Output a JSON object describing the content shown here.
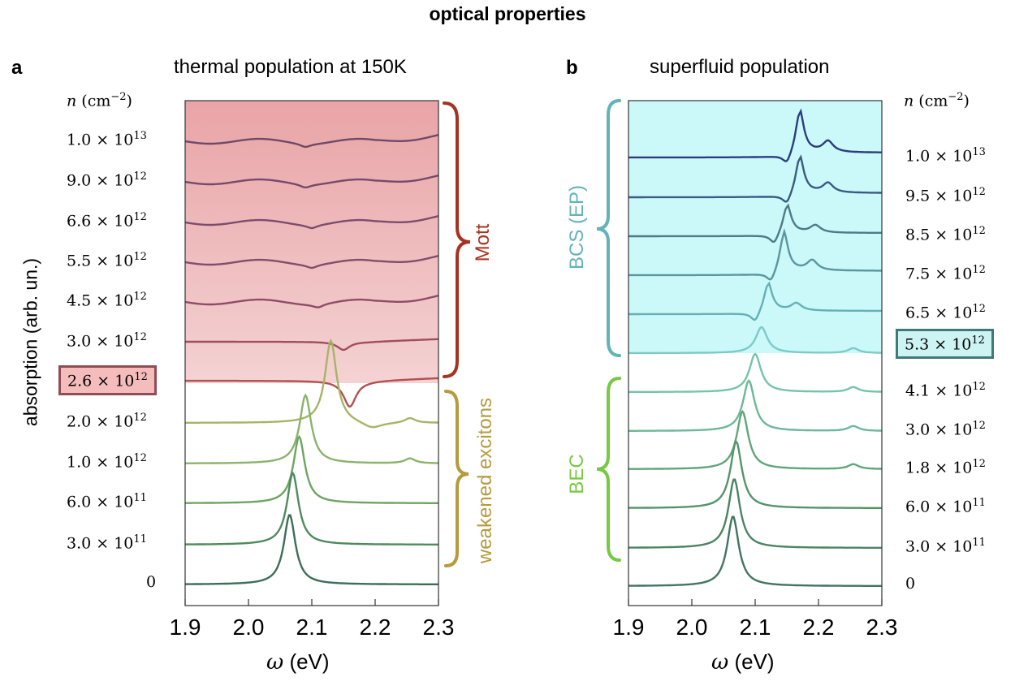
{
  "title": "optical properties",
  "y_axis_label": "absorption (arb. un.)",
  "colors": {
    "mott_brace": "#a83220",
    "weakened_brace": "#b59a3e",
    "bcs_brace": "#63b3b7",
    "bec_brace": "#77c843",
    "highlight_a_fill": "#f5bcbc",
    "highlight_a_border": "#8f4d55",
    "highlight_b_fill": "#cdf3f3",
    "highlight_b_border": "#3d7a78",
    "bg_a_top": "#e9a4a6",
    "bg_a_bottom": "#f4d2d3",
    "bg_b": "#cbf8f9"
  },
  "chart_data": [
    {
      "panel": "a",
      "type": "line",
      "title": "thermal population at 150K",
      "xlabel": "ω (eV)",
      "xlim": [
        1.9,
        2.3
      ],
      "xticks": [
        "1.9",
        "2.0",
        "2.1",
        "2.2",
        "2.3"
      ],
      "density_header": "n (cm−2)",
      "highlight": "2.6 × 10^12",
      "braces": [
        {
          "label": "Mott",
          "from": "1.0 × 10^13",
          "to": "2.6 × 10^12"
        },
        {
          "label": "weakened excitons",
          "from": "2.0 × 10^12",
          "to": "3.0 × 10^11"
        }
      ],
      "series": [
        {
          "name": "1.0 × 10^13",
          "mant": "1.0",
          "exp": "13",
          "baseline": 174,
          "shape": "flat",
          "peak": 2.09,
          "color": "#6e4a68"
        },
        {
          "name": "9.0 × 10^12",
          "mant": "9.0",
          "exp": "12",
          "baseline": 224,
          "shape": "flat",
          "peak": 2.09,
          "color": "#754a6c"
        },
        {
          "name": "6.6 × 10^12",
          "mant": "6.6",
          "exp": "12",
          "baseline": 274,
          "shape": "flat",
          "peak": 2.1,
          "color": "#7c4c6e"
        },
        {
          "name": "5.5 × 10^12",
          "mant": "5.5",
          "exp": "12",
          "baseline": 323,
          "shape": "flat",
          "peak": 2.1,
          "color": "#844c6c"
        },
        {
          "name": "4.5 × 10^12",
          "mant": "4.5",
          "exp": "12",
          "baseline": 372,
          "shape": "flat",
          "peak": 2.11,
          "color": "#8e4c68"
        },
        {
          "name": "3.0 × 10^12",
          "mant": "3.0",
          "exp": "12",
          "baseline": 422,
          "shape": "dip",
          "peak": 2.15,
          "color": "#a04e5c"
        },
        {
          "name": "2.6 × 10^12",
          "mant": "2.6",
          "exp": "12",
          "baseline": 470,
          "shape": "dip",
          "peak": 2.16,
          "color": "#b45050"
        },
        {
          "name": "2.0 × 10^12",
          "mant": "2.0",
          "exp": "12",
          "baseline": 521,
          "shape": "peak",
          "peak": 2.13,
          "amp": 102,
          "color": "#a8b367"
        },
        {
          "name": "1.0 × 10^12",
          "mant": "1.0",
          "exp": "12",
          "baseline": 571,
          "shape": "peak",
          "peak": 2.09,
          "amp": 84,
          "color": "#8bb36a"
        },
        {
          "name": "6.0 × 10^11",
          "mant": "6.0",
          "exp": "11",
          "baseline": 620,
          "shape": "peak",
          "peak": 2.08,
          "amp": 82,
          "color": "#6ea462"
        },
        {
          "name": "3.0 × 10^11",
          "mant": "3.0",
          "exp": "11",
          "baseline": 671,
          "shape": "peak",
          "peak": 2.07,
          "amp": 88,
          "color": "#4f8a5e"
        },
        {
          "name": "0",
          "mant": "0",
          "exp": "",
          "baseline": 720,
          "shape": "peak",
          "peak": 2.065,
          "amp": 86,
          "color": "#3c6e58"
        }
      ]
    },
    {
      "panel": "b",
      "type": "line",
      "title": "superfluid population",
      "xlabel": "ω (eV)",
      "xlim": [
        1.9,
        2.3
      ],
      "xticks": [
        "1.9",
        "2.0",
        "2.1",
        "2.2",
        "2.3"
      ],
      "density_header": "n (cm−2)",
      "highlight": "5.3 × 10^12",
      "braces": [
        {
          "label": "BCS (EP)",
          "from": "1.0 × 10^13",
          "to": "5.3 × 10^12"
        },
        {
          "label": "BEC",
          "from": "4.1 × 10^12",
          "to": "0"
        }
      ],
      "series": [
        {
          "name": "1.0 × 10^13",
          "mant": "1.0",
          "exp": "13",
          "baseline": 194,
          "shape": "edge",
          "peak": 2.17,
          "amp": 55,
          "color": "#2d3c7e"
        },
        {
          "name": "9.5 × 10^12",
          "mant": "9.5",
          "exp": "12",
          "baseline": 243,
          "shape": "edge",
          "peak": 2.17,
          "amp": 48,
          "color": "#3b5a82"
        },
        {
          "name": "8.5 × 10^12",
          "mant": "8.5",
          "exp": "12",
          "baseline": 291,
          "shape": "edge",
          "peak": 2.15,
          "amp": 37,
          "color": "#4d7a86"
        },
        {
          "name": "7.5 × 10^12",
          "mant": "7.5",
          "exp": "12",
          "baseline": 339,
          "shape": "edge",
          "peak": 2.145,
          "amp": 50,
          "color": "#5a969c"
        },
        {
          "name": "6.5 × 10^12",
          "mant": "6.5",
          "exp": "12",
          "baseline": 387,
          "shape": "edge",
          "peak": 2.12,
          "amp": 37,
          "color": "#66b0b5"
        },
        {
          "name": "5.3 × 10^12",
          "mant": "5.3",
          "exp": "12",
          "baseline": 435,
          "shape": "peak",
          "peak": 2.11,
          "amp": 32,
          "color": "#7acbc8"
        },
        {
          "name": "4.1 × 10^12",
          "mant": "4.1",
          "exp": "12",
          "baseline": 483,
          "shape": "peak",
          "peak": 2.1,
          "amp": 47,
          "color": "#74c4aa"
        },
        {
          "name": "3.0 × 10^12",
          "mant": "3.0",
          "exp": "12",
          "baseline": 531,
          "shape": "peak",
          "peak": 2.09,
          "amp": 62,
          "color": "#6cb898"
        },
        {
          "name": "1.8 × 10^12",
          "mant": "1.8",
          "exp": "12",
          "baseline": 578,
          "shape": "peak",
          "peak": 2.08,
          "amp": 71,
          "color": "#60a678"
        },
        {
          "name": "6.0 × 10^11",
          "mant": "6.0",
          "exp": "11",
          "baseline": 626,
          "shape": "peak",
          "peak": 2.07,
          "amp": 82,
          "color": "#55946a"
        },
        {
          "name": "3.0 × 10^11",
          "mant": "3.0",
          "exp": "11",
          "baseline": 675,
          "shape": "peak",
          "peak": 2.067,
          "amp": 85,
          "color": "#4a8463"
        },
        {
          "name": "0",
          "mant": "0",
          "exp": "",
          "baseline": 722,
          "shape": "peak",
          "peak": 2.065,
          "amp": 86,
          "color": "#417560"
        }
      ]
    }
  ]
}
